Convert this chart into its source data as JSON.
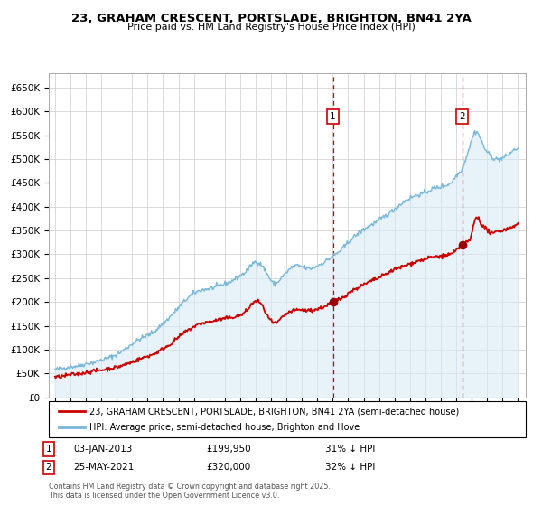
{
  "title": "23, GRAHAM CRESCENT, PORTSLADE, BRIGHTON, BN41 2YA",
  "subtitle": "Price paid vs. HM Land Registry's House Price Index (HPI)",
  "legend_line1": "23, GRAHAM CRESCENT, PORTSLADE, BRIGHTON, BN41 2YA (semi-detached house)",
  "legend_line2": "HPI: Average price, semi-detached house, Brighton and Hove",
  "footer": "Contains HM Land Registry data © Crown copyright and database right 2025.\nThis data is licensed under the Open Government Licence v3.0.",
  "sale1_label": "1",
  "sale1_date": "03-JAN-2013",
  "sale1_price": "£199,950",
  "sale1_hpi": "31% ↓ HPI",
  "sale1_x": 2013.01,
  "sale1_y": 199950,
  "sale2_label": "2",
  "sale2_date": "25-MAY-2021",
  "sale2_price": "£320,000",
  "sale2_hpi": "32% ↓ HPI",
  "sale2_x": 2021.38,
  "sale2_y": 320000,
  "hpi_color": "#7ab8d9",
  "price_color": "#cc0000",
  "marker_color": "#990000",
  "vline_color": "#cc0000",
  "fill_color": "#d8eaf6",
  "grid_color": "#cccccc",
  "ylim": [
    0,
    680000
  ],
  "xlim_start": 1994.6,
  "xlim_end": 2025.5,
  "yticks": [
    0,
    50000,
    100000,
    150000,
    200000,
    250000,
    300000,
    350000,
    400000,
    450000,
    500000,
    550000,
    600000,
    650000
  ]
}
